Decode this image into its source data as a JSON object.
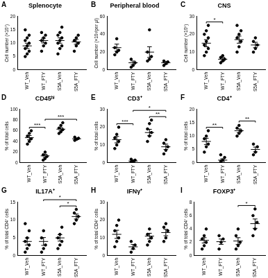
{
  "chart_data": [
    {
      "type": "scatter",
      "panel": "A",
      "title": "Splenocyte",
      "y_label": "Cell number (×10⁷)",
      "categories": [
        "WT_Veh",
        "WT_FTY",
        "S5A_Veh",
        "S5A_FTY"
      ],
      "points": [
        [
          5,
          6,
          7,
          8,
          9,
          10,
          11,
          12,
          13,
          15
        ],
        [
          7,
          9,
          10,
          11,
          12,
          13,
          14
        ],
        [
          6,
          8,
          9,
          10,
          11,
          12,
          13,
          14,
          16
        ],
        [
          7,
          9,
          10,
          11,
          12,
          13
        ]
      ],
      "means": [
        9,
        11,
        11,
        10.5
      ],
      "sem": [
        1,
        0.9,
        1,
        0.9
      ],
      "ylim": [
        0,
        20
      ],
      "yticks": [
        0,
        5,
        10,
        15,
        20
      ],
      "significance": [],
      "color": "#000000",
      "grid": false
    },
    {
      "type": "scatter",
      "panel": "B",
      "title": "Peripheral blood",
      "y_label": "Cell number (×10³/per μl)",
      "categories": [
        "WT_Veh",
        "WT_FTY",
        "S5A_Veh",
        "S5A_FTY"
      ],
      "points": [
        [
          17,
          20,
          22,
          25,
          35
        ],
        [
          3,
          5,
          8,
          12
        ],
        [
          10,
          12,
          15,
          20,
          45
        ],
        [
          5,
          7,
          9,
          10
        ]
      ],
      "means": [
        25,
        8,
        20,
        8
      ],
      "sem": [
        4,
        2,
        6,
        1.5
      ],
      "ylim": [
        0,
        60
      ],
      "yticks": [
        0,
        20,
        40,
        60
      ],
      "significance": [],
      "color": "#000000",
      "grid": false
    },
    {
      "type": "scatter",
      "panel": "C",
      "title": "CNS",
      "y_label": "Cell number (×10⁵)",
      "categories": [
        "WT_Veh",
        "WT_FTY",
        "S5A_Veh",
        "S5A_FTY"
      ],
      "points": [
        [
          8,
          10,
          12,
          14,
          16,
          18,
          20,
          22,
          25
        ],
        [
          4,
          5,
          6,
          7,
          8
        ],
        [
          10,
          13,
          16,
          18,
          20,
          22,
          25
        ],
        [
          10,
          12,
          14,
          16,
          18
        ]
      ],
      "means": [
        15,
        6,
        17,
        14
      ],
      "sem": [
        2,
        1,
        2,
        1.5
      ],
      "ylim": [
        0,
        30
      ],
      "yticks": [
        0,
        10,
        20,
        30
      ],
      "significance": [
        {
          "from": 0,
          "to": 1,
          "label": "*"
        }
      ],
      "color": "#000000",
      "grid": false
    },
    {
      "type": "scatter",
      "panel": "D",
      "title": "CD45ʰⁱ",
      "y_label": "% of total cells",
      "categories": [
        "WT_Veh",
        "WT_FTY",
        "S5A_Veh",
        "S5A_FTY"
      ],
      "points": [
        [
          35,
          40,
          45,
          50,
          55,
          60
        ],
        [
          5,
          8,
          12,
          15,
          20
        ],
        [
          55,
          58,
          62,
          65,
          70,
          75
        ],
        [
          42,
          44,
          46,
          48
        ]
      ],
      "means": [
        47,
        13,
        63,
        45
      ],
      "sem": [
        4,
        3,
        3,
        1.5
      ],
      "ylim": [
        0,
        100
      ],
      "yticks": [
        0,
        20,
        40,
        60,
        80,
        100
      ],
      "significance": [
        {
          "from": 0,
          "to": 1,
          "label": "***"
        },
        {
          "from": 1,
          "to": 3,
          "label": "***"
        }
      ],
      "color": "#000000",
      "grid": false
    },
    {
      "type": "scatter",
      "panel": "E",
      "title": "CD3⁺",
      "y_label": "% of total cells",
      "categories": [
        "WT_Veh",
        "WT_FTY",
        "S5A_Veh",
        "S5A_FTY"
      ],
      "points": [
        [
          8,
          10,
          12,
          14,
          16,
          20
        ],
        [
          0.5,
          1,
          1.5,
          2
        ],
        [
          12,
          15,
          17,
          19,
          22,
          24
        ],
        [
          5,
          7,
          9,
          11,
          13
        ]
      ],
      "means": [
        13,
        1,
        17,
        9
      ],
      "sem": [
        1.8,
        0.4,
        1.8,
        1.5
      ],
      "ylim": [
        0,
        30
      ],
      "yticks": [
        0,
        10,
        20,
        30
      ],
      "significance": [
        {
          "from": 0,
          "to": 1,
          "label": "***"
        },
        {
          "from": 2,
          "to": 3,
          "label": "**"
        },
        {
          "from": 1,
          "to": 3,
          "label": "*"
        }
      ],
      "color": "#000000",
      "grid": false
    },
    {
      "type": "scatter",
      "panel": "F",
      "title": "CD4⁺",
      "y_label": "% of total cells",
      "categories": [
        "WT_Veh",
        "WT_FTY",
        "S5A_Veh",
        "S5A_FTY"
      ],
      "points": [
        [
          4,
          6,
          7,
          9,
          10,
          12
        ],
        [
          0.5,
          1,
          2,
          3
        ],
        [
          10,
          11,
          12,
          13,
          14
        ],
        [
          3,
          4,
          6,
          7
        ]
      ],
      "means": [
        8,
        1,
        12,
        5
      ],
      "sem": [
        1.2,
        0.5,
        0.7,
        0.9
      ],
      "ylim": [
        0,
        20
      ],
      "yticks": [
        0,
        5,
        10,
        15,
        20
      ],
      "significance": [
        {
          "from": 0,
          "to": 1,
          "label": "**"
        },
        {
          "from": 2,
          "to": 3,
          "label": "**"
        }
      ],
      "color": "#000000",
      "grid": false
    },
    {
      "type": "scatter",
      "panel": "G",
      "title": "IL17A⁺",
      "y_label": "% of total CD4⁺ cells",
      "categories": [
        "WT_Veh",
        "WT_FTY",
        "S5A_Veh",
        "S5A_FTY"
      ],
      "points": [
        [
          1,
          2,
          3,
          4,
          5,
          7,
          9
        ],
        [
          1,
          2,
          3,
          5,
          7
        ],
        [
          2,
          3,
          4,
          5,
          6,
          8
        ],
        [
          9,
          10,
          11,
          12,
          13
        ]
      ],
      "means": [
        4,
        4,
        5,
        11
      ],
      "sem": [
        1,
        1.1,
        0.9,
        0.7
      ],
      "ylim": [
        0,
        15
      ],
      "yticks": [
        0,
        5,
        10,
        15
      ],
      "significance": [
        {
          "from": 2,
          "to": 3,
          "label": "*"
        },
        {
          "from": 1,
          "to": 3,
          "label": "*"
        }
      ],
      "color": "#000000",
      "grid": false
    },
    {
      "type": "scatter",
      "panel": "H",
      "title": "IFNγ⁺",
      "y_label": "% of total CD4⁺ cells",
      "categories": [
        "WT_Veh",
        "WT_FTY",
        "S5A_Veh",
        "S5A_FTY"
      ],
      "points": [
        [
          5,
          8,
          10,
          14,
          17,
          20
        ],
        [
          2,
          4,
          6,
          8
        ],
        [
          6,
          8,
          10,
          12,
          15
        ],
        [
          8,
          10,
          14,
          16,
          18
        ]
      ],
      "means": [
        12,
        5,
        11,
        13
      ],
      "sem": [
        2.3,
        1.3,
        1.6,
        1.8
      ],
      "ylim": [
        0,
        30
      ],
      "yticks": [
        0,
        10,
        20,
        30
      ],
      "significance": [],
      "color": "#000000",
      "grid": false
    },
    {
      "type": "scatter",
      "panel": "I",
      "title": "FOXP3⁺",
      "y_label": "% of total CD4⁺ cells",
      "categories": [
        "WT_Veh",
        "WT_FTY",
        "S5A_Veh",
        "S5A_FTY"
      ],
      "points": [
        [
          1,
          1.5,
          2,
          2.5,
          3,
          4
        ],
        [
          1,
          2,
          2.5,
          3
        ],
        [
          1,
          1.5,
          2,
          3,
          4
        ],
        [
          3,
          4,
          5,
          6,
          7
        ]
      ],
      "means": [
        2.3,
        2.1,
        2.2,
        4.8
      ],
      "sem": [
        0.4,
        0.4,
        0.5,
        0.7
      ],
      "ylim": [
        0,
        8
      ],
      "yticks": [
        0,
        2,
        4,
        6,
        8
      ],
      "significance": [
        {
          "from": 2,
          "to": 3,
          "label": "*"
        }
      ],
      "color": "#000000",
      "grid": false
    }
  ]
}
